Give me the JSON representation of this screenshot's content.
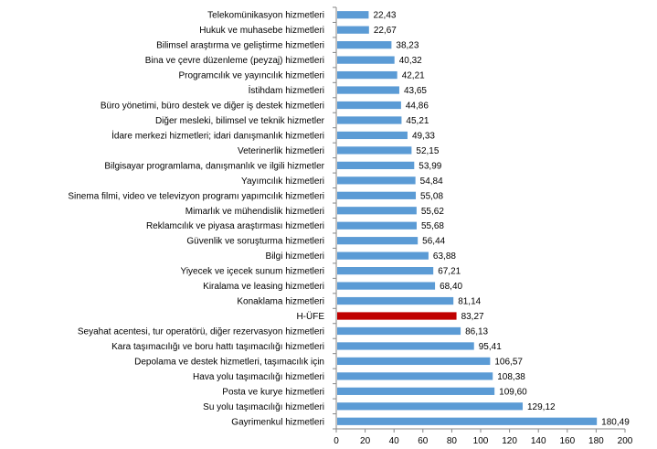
{
  "chart_data": {
    "type": "bar",
    "orientation": "horizontal",
    "categories": [
      "Telekomünikasyon hizmetleri",
      "Hukuk ve muhasebe hizmetleri",
      "Bilimsel araştırma ve geliştirme hizmetleri",
      "Bina ve çevre düzenleme (peyzaj) hizmetleri",
      "Programcılık ve yayıncılık hizmetleri",
      "İstihdam hizmetleri",
      "Büro yönetimi, büro destek ve diğer iş destek hizmetleri",
      "Diğer mesleki, bilimsel ve teknik hizmetler",
      "İdare merkezi hizmetleri; idari danışmanlık hizmetleri",
      "Veterinerlik hizmetleri",
      "Bilgisayar programlama, danışmanlık ve ilgili hizmetler",
      "Yayımcılık hizmetleri",
      "Sinema filmi, video ve televizyon programı yapımcılık hizmetleri",
      "Mimarlık ve mühendislik hizmetleri",
      "Reklamcılık ve piyasa araştırması hizmetleri",
      "Güvenlik ve soruşturma hizmetleri",
      "Bilgi hizmetleri",
      "Yiyecek ve içecek sunum hizmetleri",
      "Kiralama ve leasing hizmetleri",
      "Konaklama hizmetleri",
      "H-ÜFE",
      "Seyahat acentesi, tur operatörü, diğer rezervasyon hizmetleri",
      "Kara taşımacılığı ve boru hattı taşımacılığı hizmetleri",
      "Depolama ve destek hizmetleri, taşımacılık için",
      "Hava yolu taşımacılığı hizmetleri",
      "Posta ve kurye hizmetleri",
      "Su yolu taşımacılığı hizmetleri",
      "Gayrimenkul hizmetleri"
    ],
    "values": [
      22.43,
      22.67,
      38.23,
      40.32,
      42.21,
      43.65,
      44.86,
      45.21,
      49.33,
      52.15,
      53.99,
      54.84,
      55.08,
      55.62,
      55.68,
      56.44,
      63.88,
      67.21,
      68.4,
      81.14,
      83.27,
      86.13,
      95.41,
      106.57,
      108.38,
      109.6,
      129.12,
      180.49
    ],
    "value_labels": [
      "22,43",
      "22,67",
      "38,23",
      "40,32",
      "42,21",
      "43,65",
      "44,86",
      "45,21",
      "49,33",
      "52,15",
      "53,99",
      "54,84",
      "55,08",
      "55,62",
      "55,68",
      "56,44",
      "63,88",
      "67,21",
      "68,40",
      "81,14",
      "83,27",
      "86,13",
      "95,41",
      "106,57",
      "108,38",
      "109,60",
      "129,12",
      "180,49"
    ],
    "highlight_category": "H-ÜFE",
    "xlim": [
      0,
      200
    ],
    "x_ticks": [
      0,
      20,
      40,
      60,
      80,
      100,
      120,
      140,
      160,
      180,
      200
    ],
    "grid": false,
    "legend": "none",
    "title": "",
    "xlabel": "",
    "ylabel": "",
    "colors": {
      "bar": "#5b9bd5",
      "highlight": "#c00000",
      "axis": "#868686"
    }
  }
}
